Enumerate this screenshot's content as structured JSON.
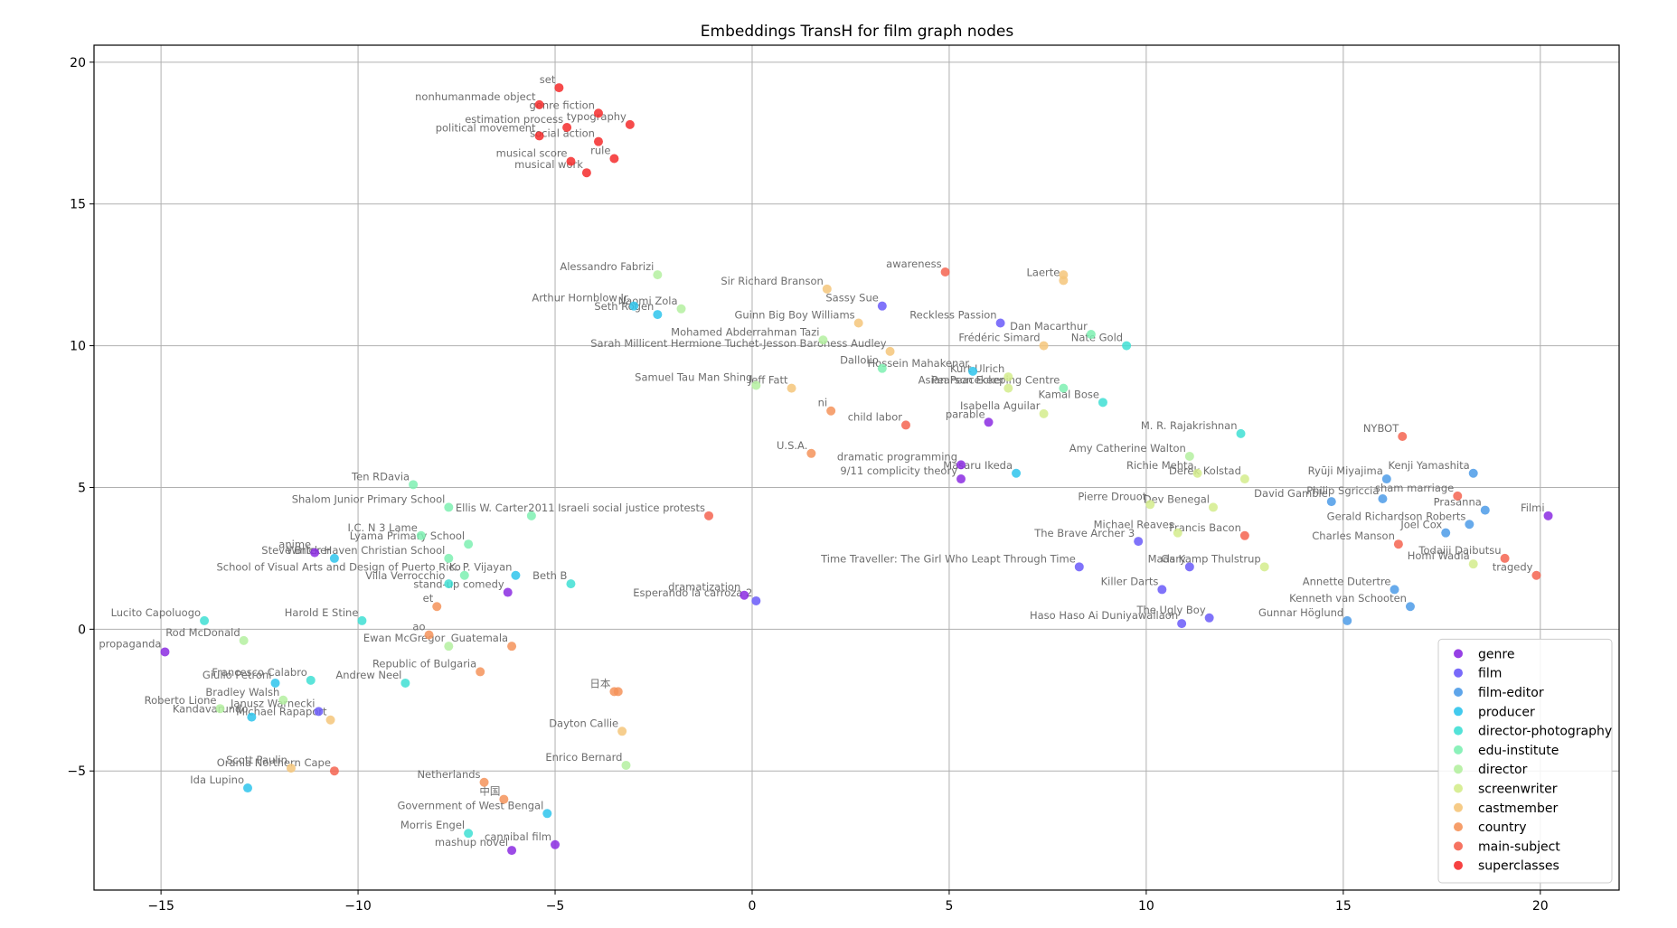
{
  "chart_data": {
    "type": "scatter",
    "title": "Embeddings TransH for film graph nodes",
    "xlabel": "",
    "ylabel": "",
    "xlim": [
      -16.7,
      22
    ],
    "ylim": [
      -9.2,
      20.6
    ],
    "xticks": [
      -15,
      -10,
      -5,
      0,
      5,
      10,
      15,
      20
    ],
    "yticks": [
      -5,
      0,
      5,
      10,
      15,
      20
    ],
    "xtick_labels": [
      "−15",
      "−10",
      "−5",
      "0",
      "5",
      "10",
      "15",
      "20"
    ],
    "ytick_labels": [
      "−5",
      "0",
      "5",
      "10",
      "15",
      "20"
    ],
    "grid": true,
    "legend_position": "lower-right",
    "series": [
      {
        "name": "genre",
        "color": "#8b2be2",
        "points": [
          {
            "x": -14.9,
            "y": -0.8,
            "label": "propaganda"
          },
          {
            "x": -11.1,
            "y": 2.7,
            "label": "anime"
          },
          {
            "x": -6.2,
            "y": 1.3,
            "label": "stand-up comedy"
          },
          {
            "x": -0.2,
            "y": 1.2,
            "label": "dramatization"
          },
          {
            "x": 6.0,
            "y": 7.3,
            "label": "parable"
          },
          {
            "x": 5.3,
            "y": 5.8,
            "label": "dramatic programming"
          },
          {
            "x": 5.3,
            "y": 5.3,
            "label": "9/11 complicity theory"
          },
          {
            "x": -6.1,
            "y": -7.8,
            "label": "mashup novel"
          },
          {
            "x": -5.0,
            "y": -7.6,
            "label": "cannibal film"
          },
          {
            "x": 20.2,
            "y": 4.0,
            "label": "Filmi"
          }
        ]
      },
      {
        "name": "film",
        "color": "#6a5af9",
        "points": [
          {
            "x": 3.3,
            "y": 11.4,
            "label": "Sassy Sue"
          },
          {
            "x": 6.3,
            "y": 10.8,
            "label": "Reckless Passion"
          },
          {
            "x": 0.1,
            "y": 1.0,
            "label": "Esperando la carroza 2"
          },
          {
            "x": -11.0,
            "y": -2.9,
            "label": "Janusz Warnecki"
          },
          {
            "x": 8.3,
            "y": 2.2,
            "label": "Time Traveller: The Girl Who Leapt Through Time"
          },
          {
            "x": 9.8,
            "y": 3.1,
            "label": "The Brave Archer 3"
          },
          {
            "x": 11.1,
            "y": 2.2,
            "label": "Gary"
          },
          {
            "x": 10.4,
            "y": 1.4,
            "label": "Killer Darts"
          },
          {
            "x": 11.6,
            "y": 0.4,
            "label": "The Ugly Boy"
          },
          {
            "x": 10.9,
            "y": 0.2,
            "label": "Haso Haso Ai Duniyawallaon"
          }
        ]
      },
      {
        "name": "film-editor",
        "color": "#4c9be8",
        "points": [
          {
            "x": 14.7,
            "y": 4.5,
            "label": "David Gamble"
          },
          {
            "x": 16.1,
            "y": 5.3,
            "label": "Ryūji Miyajima"
          },
          {
            "x": 16.0,
            "y": 4.6,
            "label": "Philip Sgriccia"
          },
          {
            "x": 18.3,
            "y": 5.5,
            "label": "Kenji Yamashita"
          },
          {
            "x": 18.6,
            "y": 4.2,
            "label": "Prasanna"
          },
          {
            "x": 18.2,
            "y": 3.7,
            "label": "Gerald Richardson Roberts"
          },
          {
            "x": 17.6,
            "y": 3.4,
            "label": "Joel Cox"
          },
          {
            "x": 16.3,
            "y": 1.4,
            "label": "Annette Dutertre"
          },
          {
            "x": 16.7,
            "y": 0.8,
            "label": "Kenneth van Schooten"
          },
          {
            "x": 15.1,
            "y": 0.3,
            "label": "Gunnar Höglund"
          }
        ]
      },
      {
        "name": "producer",
        "color": "#2ec4ec",
        "points": [
          {
            "x": -3.0,
            "y": 11.4,
            "label": "Arthur Hornblow Jr."
          },
          {
            "x": -2.4,
            "y": 11.1,
            "label": "Seth Rogen"
          },
          {
            "x": 5.6,
            "y": 9.1,
            "label": "Hossein Mahakenar"
          },
          {
            "x": 6.7,
            "y": 5.5,
            "label": "Masaru Ikeda"
          },
          {
            "x": -10.6,
            "y": 2.5,
            "label": "Steve Bricker"
          },
          {
            "x": -6.0,
            "y": 1.9,
            "label": "K. P. Vijayan"
          },
          {
            "x": -12.7,
            "y": -3.1,
            "label": "Kandavarundo"
          },
          {
            "x": -12.1,
            "y": -1.9,
            "label": "Giulio Petroni"
          },
          {
            "x": -12.8,
            "y": -5.6,
            "label": "Ida Lupino"
          },
          {
            "x": -5.2,
            "y": -6.5,
            "label": "Government of West Bengal"
          }
        ]
      },
      {
        "name": "director-photography",
        "color": "#40dfd4",
        "points": [
          {
            "x": 8.9,
            "y": 8.0,
            "label": "Kamal Bose"
          },
          {
            "x": 9.5,
            "y": 10.0,
            "label": "Nate Gold"
          },
          {
            "x": 12.4,
            "y": 6.9,
            "label": "M. R. Rajakrishnan"
          },
          {
            "x": -4.6,
            "y": 1.6,
            "label": "Beth B"
          },
          {
            "x": -9.9,
            "y": 0.3,
            "label": "Harold E Stine"
          },
          {
            "x": -8.8,
            "y": -1.9,
            "label": "Andrew Neel"
          },
          {
            "x": -11.2,
            "y": -1.8,
            "label": "Francesco Calabro"
          },
          {
            "x": -7.2,
            "y": -7.2,
            "label": "Morris Engel"
          },
          {
            "x": -13.9,
            "y": 0.3,
            "label": "Lucito Capoluogo"
          },
          {
            "x": -7.7,
            "y": 1.6,
            "label": "Villa Verrocchio"
          }
        ]
      },
      {
        "name": "edu-institute",
        "color": "#7ef0b2",
        "points": [
          {
            "x": 3.3,
            "y": 9.2,
            "label": "Dallolio"
          },
          {
            "x": 7.9,
            "y": 8.5,
            "label": "Asian Peacekeeping Centre"
          },
          {
            "x": 8.6,
            "y": 10.4,
            "label": "Dan Macarthur"
          },
          {
            "x": -8.6,
            "y": 5.1,
            "label": "Ten RDavia"
          },
          {
            "x": -7.7,
            "y": 4.3,
            "label": "Shalom Junior Primary School"
          },
          {
            "x": -8.4,
            "y": 3.3,
            "label": "I.C. N 3 Lame"
          },
          {
            "x": -7.2,
            "y": 3.0,
            "label": "Lyama Primary School"
          },
          {
            "x": -7.7,
            "y": 2.5,
            "label": "Winter Haven Christian School"
          },
          {
            "x": -7.3,
            "y": 1.9,
            "label": "School of Visual Arts and Design of Puerto Rico"
          },
          {
            "x": -5.6,
            "y": 4.0,
            "label": "Ellis W. Carter"
          }
        ]
      },
      {
        "name": "director",
        "color": "#b4f0a0",
        "points": [
          {
            "x": -2.4,
            "y": 12.5,
            "label": "Alessandro Fabrizi"
          },
          {
            "x": -1.8,
            "y": 11.3,
            "label": "Naomi Zola"
          },
          {
            "x": 1.8,
            "y": 10.2,
            "label": "Mohamed Abderrahman Tazi"
          },
          {
            "x": 0.1,
            "y": 8.6,
            "label": "Samuel Tau Man Shing"
          },
          {
            "x": -12.9,
            "y": -0.4,
            "label": "Rod McDonald"
          },
          {
            "x": -11.9,
            "y": -2.5,
            "label": "Bradley Walsh"
          },
          {
            "x": -13.5,
            "y": -2.8,
            "label": "Roberto Lione"
          },
          {
            "x": -3.2,
            "y": -4.8,
            "label": "Enrico Bernard"
          },
          {
            "x": -7.7,
            "y": -0.6,
            "label": "Ewan McGregor"
          },
          {
            "x": 11.1,
            "y": 6.1,
            "label": "Amy Catherine Walton"
          }
        ]
      },
      {
        "name": "screenwriter",
        "color": "#d4ec8c",
        "points": [
          {
            "x": 6.5,
            "y": 8.9,
            "label": "Kurt Ulrich"
          },
          {
            "x": 7.4,
            "y": 7.6,
            "label": "Isabella Aguilar"
          },
          {
            "x": 11.3,
            "y": 5.5,
            "label": "Richie Mehta"
          },
          {
            "x": 12.5,
            "y": 5.3,
            "label": "Derek Kolstad"
          },
          {
            "x": 10.1,
            "y": 4.4,
            "label": "Pierre Drouot"
          },
          {
            "x": 11.7,
            "y": 4.3,
            "label": "Dev Benegal"
          },
          {
            "x": 10.8,
            "y": 3.4,
            "label": "Michael Reaves"
          },
          {
            "x": 13.0,
            "y": 2.2,
            "label": "Mads Kamp Thulstrup"
          },
          {
            "x": 18.3,
            "y": 2.3,
            "label": "Homi Wadia"
          },
          {
            "x": 6.5,
            "y": 8.5,
            "label": "Pearson Ecker"
          }
        ]
      },
      {
        "name": "castmember",
        "color": "#f5c57a",
        "points": [
          {
            "x": 1.9,
            "y": 12.0,
            "label": "Sir Richard Branson"
          },
          {
            "x": 2.7,
            "y": 10.8,
            "label": "Guinn Big Boy Williams"
          },
          {
            "x": 3.5,
            "y": 9.8,
            "label": "Sarah Millicent Hermione Tuchet-Jesson Baroness Audley"
          },
          {
            "x": 1.0,
            "y": 8.5,
            "label": "Jeff Fatt"
          },
          {
            "x": 7.9,
            "y": 12.3,
            "label": "Laerte"
          },
          {
            "x": 7.4,
            "y": 10.0,
            "label": "Frédéric Simard"
          },
          {
            "x": -3.3,
            "y": -3.6,
            "label": "Dayton Callie"
          },
          {
            "x": -10.7,
            "y": -3.2,
            "label": "Michael Rapaport"
          },
          {
            "x": -11.7,
            "y": -4.9,
            "label": "Scott Paulin"
          },
          {
            "x": 7.9,
            "y": 12.5,
            "label": ""
          }
        ]
      },
      {
        "name": "country",
        "color": "#f5935a",
        "points": [
          {
            "x": 2.0,
            "y": 7.7,
            "label": "ni"
          },
          {
            "x": 1.5,
            "y": 6.2,
            "label": "U.S.A."
          },
          {
            "x": -8.0,
            "y": 0.8,
            "label": "et"
          },
          {
            "x": -8.2,
            "y": -0.2,
            "label": "ao"
          },
          {
            "x": -6.1,
            "y": -0.6,
            "label": "Guatemala"
          },
          {
            "x": -6.9,
            "y": -1.5,
            "label": "Republic of Bulgaria"
          },
          {
            "x": -3.5,
            "y": -2.2,
            "label": "日本"
          },
          {
            "x": -3.4,
            "y": -2.2,
            "label": ""
          },
          {
            "x": -6.8,
            "y": -5.4,
            "label": "Netherlands"
          },
          {
            "x": -6.3,
            "y": -6.0,
            "label": "中国"
          }
        ]
      },
      {
        "name": "main-subject",
        "color": "#f56450",
        "points": [
          {
            "x": 4.9,
            "y": 12.6,
            "label": "awareness"
          },
          {
            "x": 3.9,
            "y": 7.2,
            "label": "child labor"
          },
          {
            "x": -1.1,
            "y": 4.0,
            "label": "2011 Israeli social justice protests"
          },
          {
            "x": 16.5,
            "y": 6.8,
            "label": "NYBOT"
          },
          {
            "x": 17.9,
            "y": 4.7,
            "label": "sham marriage"
          },
          {
            "x": 12.5,
            "y": 3.3,
            "label": "Francis Bacon"
          },
          {
            "x": 16.4,
            "y": 3.0,
            "label": "Charles Manson"
          },
          {
            "x": 19.1,
            "y": 2.5,
            "label": "Todaiji Daibutsu"
          },
          {
            "x": 19.9,
            "y": 1.9,
            "label": "tragedy"
          },
          {
            "x": -10.6,
            "y": -5.0,
            "label": "Orania Northern Cape"
          }
        ]
      },
      {
        "name": "superclasses",
        "color": "#f52c2c",
        "points": [
          {
            "x": -4.9,
            "y": 19.1,
            "label": "set"
          },
          {
            "x": -5.4,
            "y": 18.5,
            "label": "nonhumanmade object"
          },
          {
            "x": -3.9,
            "y": 18.2,
            "label": "genre fiction"
          },
          {
            "x": -4.7,
            "y": 17.7,
            "label": "estimation process"
          },
          {
            "x": -3.1,
            "y": 17.8,
            "label": "typography"
          },
          {
            "x": -5.4,
            "y": 17.4,
            "label": "political movement"
          },
          {
            "x": -3.9,
            "y": 17.2,
            "label": "social action"
          },
          {
            "x": -3.5,
            "y": 16.6,
            "label": "rule"
          },
          {
            "x": -4.6,
            "y": 16.5,
            "label": "musical score"
          },
          {
            "x": -4.2,
            "y": 16.1,
            "label": "musical work"
          }
        ]
      }
    ]
  }
}
